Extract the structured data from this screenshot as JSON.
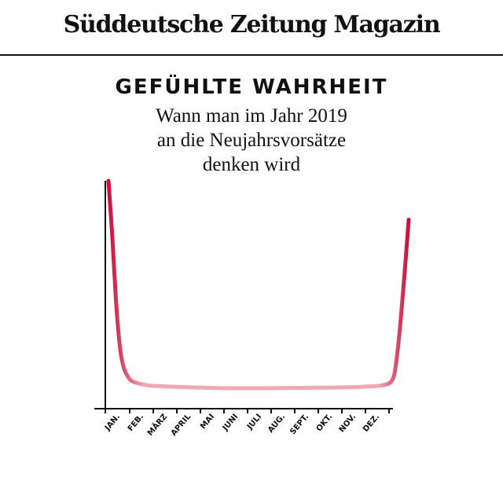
{
  "masthead": "Süddeutsche Zeitung Magazin",
  "chart_data": {
    "type": "line",
    "title": "GEFÜHLTE WAHRHEIT",
    "subtitle": [
      "Wann man im Jahr 2019",
      "an die Neujahrsvorsätze",
      "denken wird"
    ],
    "xlabel": "",
    "ylabel": "",
    "categories": [
      "JAN.",
      "FEB.",
      "MÄRZ",
      "APRIL",
      "MAI",
      "JUNI",
      "JULI",
      "AUG.",
      "SEPT.",
      "OKT.",
      "NOV.",
      "DEZ."
    ],
    "xlim": [
      0,
      12
    ],
    "ylim": [
      0,
      100
    ],
    "grid": false,
    "legend": "none",
    "series": [
      {
        "x": [
          0,
          0.15,
          0.3,
          0.45,
          0.6,
          0.8,
          1.0,
          1.5,
          2,
          4,
          6,
          8,
          10,
          11,
          11.35,
          11.5,
          11.65,
          11.8,
          12
        ],
        "y": [
          100,
          75,
          45,
          24,
          14,
          9,
          7,
          5.5,
          5,
          4.2,
          4,
          4.2,
          4.6,
          5.5,
          8,
          16,
          32,
          52,
          82
        ]
      }
    ],
    "colors": {
      "ends": "#c8103a",
      "middle": "#f0a9b1",
      "axis": "#111111"
    }
  }
}
